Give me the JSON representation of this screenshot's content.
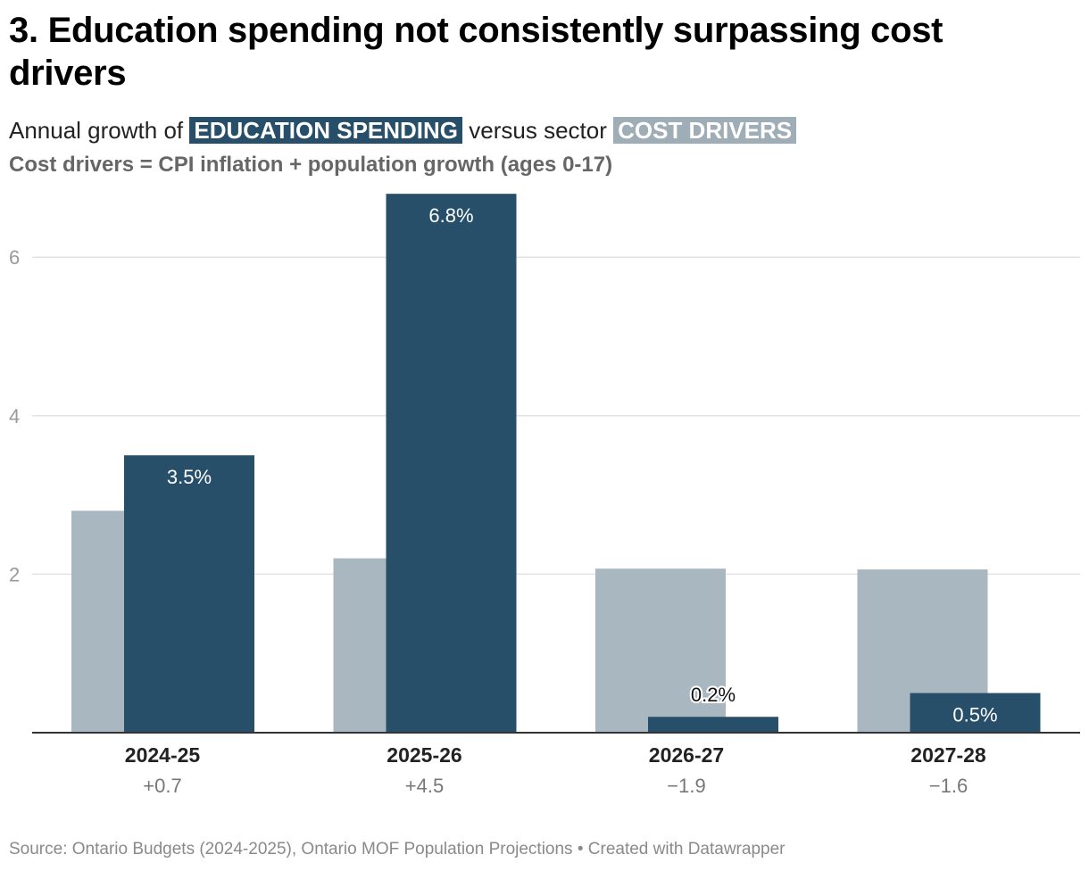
{
  "title": "3. Education spending not consistently surpassing cost drivers",
  "subtitle": {
    "prefix": "Annual growth of",
    "education_label": "EDUCATION SPENDING",
    "middle": "versus sector",
    "cost_label": "COST DRIVERS"
  },
  "note": "Cost drivers = CPI inflation + population growth (ages 0-17)",
  "source": "Source: Ontario Budgets (2024-2025), Ontario MOF Population Projections • Created with Datawrapper",
  "colors": {
    "education": "#274f69",
    "cost": "#a9b8c0",
    "grid": "#e2e2e2",
    "axis": "#333333",
    "tick_label": "#9a9a9a",
    "diff_label": "#777777"
  },
  "chart_data": {
    "type": "bar",
    "categories": [
      "2024-25",
      "2025-26",
      "2026-27",
      "2027-28"
    ],
    "series": [
      {
        "name": "COST DRIVERS",
        "values": [
          2.8,
          2.2,
          2.07,
          2.06
        ]
      },
      {
        "name": "EDUCATION SPENDING",
        "values": [
          3.5,
          6.8,
          0.2,
          0.5
        ]
      }
    ],
    "data_labels": [
      "3.5%",
      "6.8%",
      "0.2%",
      "0.5%"
    ],
    "differences": [
      "+0.7",
      "+4.5",
      "−1.9",
      "−1.6"
    ],
    "yticks": [
      2,
      4,
      6
    ],
    "ylim": [
      0,
      6.8
    ],
    "grid": true,
    "xlabel": "",
    "ylabel": ""
  }
}
